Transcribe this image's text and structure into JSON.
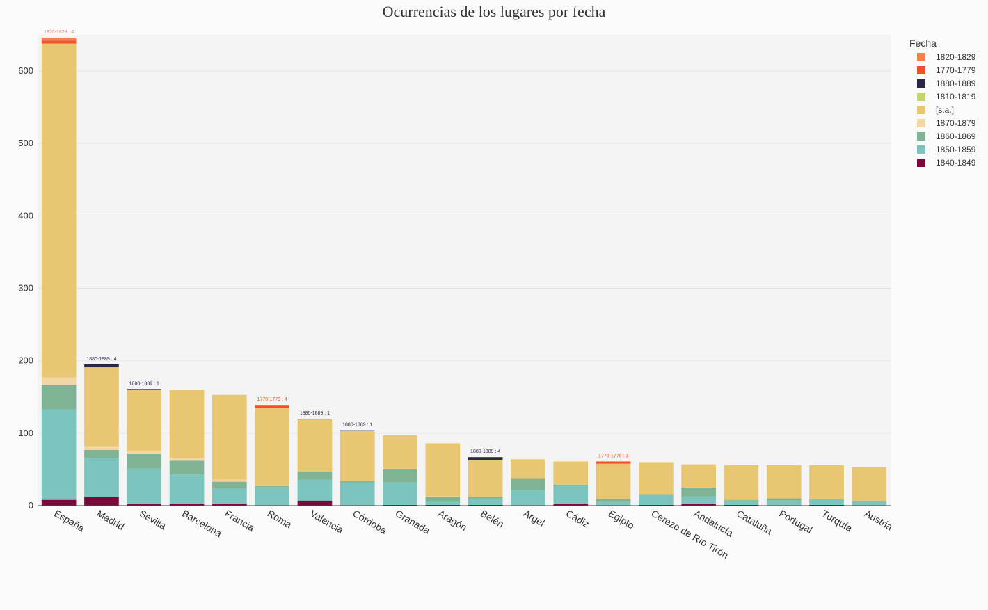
{
  "chart_data": {
    "type": "bar",
    "stacked": true,
    "title": "Ocurrencias de los lugares por fecha",
    "xlabel": "",
    "ylabel": "",
    "ylim": [
      0,
      650
    ],
    "yticks": [
      0,
      100,
      200,
      300,
      400,
      500,
      600
    ],
    "grid": true,
    "legend": {
      "title": "Fecha",
      "placement": "right"
    },
    "categories": [
      "España",
      "Madrid",
      "Sevilla",
      "Barcelona",
      "Francia",
      "Roma",
      "Valencia",
      "Córdoba",
      "Granada",
      "Aragón",
      "Belén",
      "Argel",
      "Cádiz",
      "Egipto",
      "Cerezo de Río Tirón",
      "Andalucía",
      "Cataluña",
      "Portugal",
      "Turquía",
      "Austria"
    ],
    "series": [
      {
        "name": "1840-1849",
        "color": "#7b0a3a",
        "values": [
          8,
          12,
          2,
          2,
          2,
          0,
          7,
          0,
          1,
          1,
          1,
          0,
          2,
          0,
          1,
          2,
          1,
          0,
          1,
          0
        ]
      },
      {
        "name": "1850-1859",
        "color": "#7cc4be",
        "values": [
          125,
          54,
          49,
          41,
          22,
          26,
          29,
          32,
          31,
          4,
          9,
          22,
          25,
          5,
          14,
          11,
          6,
          7,
          7,
          7
        ]
      },
      {
        "name": "1860-1869",
        "color": "#7fb394",
        "values": [
          34,
          11,
          21,
          19,
          9,
          1,
          11,
          2,
          18,
          7,
          2,
          16,
          2,
          4,
          1,
          12,
          1,
          3,
          1,
          0
        ]
      },
      {
        "name": "1870-1879",
        "color": "#f1d7a5",
        "values": [
          10,
          5,
          4,
          4,
          3,
          0,
          0,
          0,
          1,
          1,
          0,
          0,
          0,
          0,
          0,
          0,
          0,
          0,
          0,
          0
        ]
      },
      {
        "name": "[s.a.]",
        "color": "#e8c672",
        "values": [
          461,
          109,
          84,
          94,
          117,
          108,
          72,
          69,
          46,
          73,
          50,
          26,
          32,
          49,
          44,
          32,
          48,
          46,
          47,
          46
        ]
      },
      {
        "name": "1810-1819",
        "color": "#c5d56b",
        "values": [
          0,
          0,
          0,
          0,
          0,
          0,
          0,
          0,
          0,
          0,
          1,
          0,
          0,
          0,
          0,
          0,
          0,
          0,
          0,
          0
        ]
      },
      {
        "name": "1880-1889",
        "color": "#2b2847",
        "values": [
          0,
          4,
          1,
          0,
          0,
          0,
          1,
          1,
          0,
          0,
          4,
          0,
          0,
          0,
          0,
          0,
          0,
          0,
          0,
          0
        ]
      },
      {
        "name": "1770-1779",
        "color": "#ef4f2a",
        "values": [
          4,
          0,
          0,
          0,
          0,
          4,
          0,
          0,
          0,
          0,
          0,
          0,
          0,
          3,
          0,
          0,
          0,
          0,
          0,
          0
        ]
      },
      {
        "name": "1820-1829",
        "color": "#f47f52",
        "values": [
          4,
          0,
          0,
          0,
          0,
          0,
          0,
          0,
          0,
          0,
          0,
          0,
          0,
          0,
          0,
          0,
          0,
          0,
          0,
          0
        ]
      }
    ],
    "legend_order": [
      "1820-1829",
      "1770-1779",
      "1880-1889",
      "1810-1819",
      "[s.a.]",
      "1870-1879",
      "1860-1869",
      "1850-1859",
      "1840-1849"
    ],
    "annotations": [
      {
        "category": "España",
        "series": "1820-1829",
        "text": "1820-1829 :  4"
      },
      {
        "category": "Madrid",
        "series": "1880-1889",
        "text": "1880-1889 :  4"
      },
      {
        "category": "Sevilla",
        "series": "1880-1889",
        "text": "1880-1889 :  1"
      },
      {
        "category": "Roma",
        "series": "1770-1779",
        "text": "1770-1779 :  4"
      },
      {
        "category": "Valencia",
        "series": "1880-1889",
        "text": "1880-1889 :  1"
      },
      {
        "category": "Córdoba",
        "series": "1880-1889",
        "text": "1880-1889 :  1"
      },
      {
        "category": "Belén",
        "series": "1880-1889",
        "text": "1880-1889 :  4"
      },
      {
        "category": "Egipto",
        "series": "1770-1779",
        "text": "1770-1779 :  3"
      }
    ]
  }
}
